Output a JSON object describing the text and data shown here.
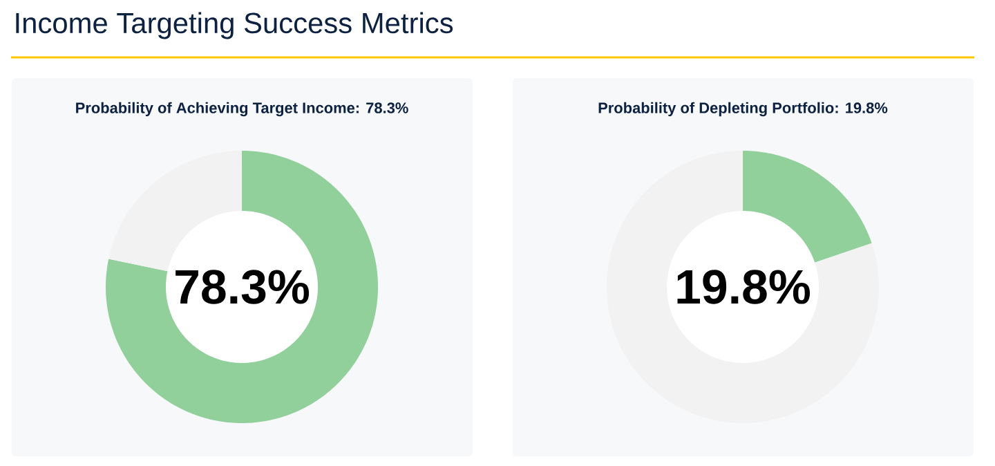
{
  "chart_data": [
    {
      "type": "other",
      "title": "Income Targeting Success Metrics"
    },
    {
      "type": "donut",
      "title": "Probability of Achieving Target Income: 78.3%",
      "categories": [
        null,
        null
      ],
      "values": [
        78.3,
        21.7
      ],
      "colors": [
        "#91d09b",
        "#f2f2f2"
      ],
      "annotations": [
        "78.3%"
      ]
    },
    {
      "type": "donut",
      "title": "Probability of Depleting Portfolio: 19.8%",
      "categories": [
        null,
        null
      ],
      "values": [
        19.8,
        80.2
      ],
      "colors": [
        "#91d09b",
        "#f2f2f2"
      ],
      "annotations": [
        "19.8%"
      ]
    }
  ]
}
